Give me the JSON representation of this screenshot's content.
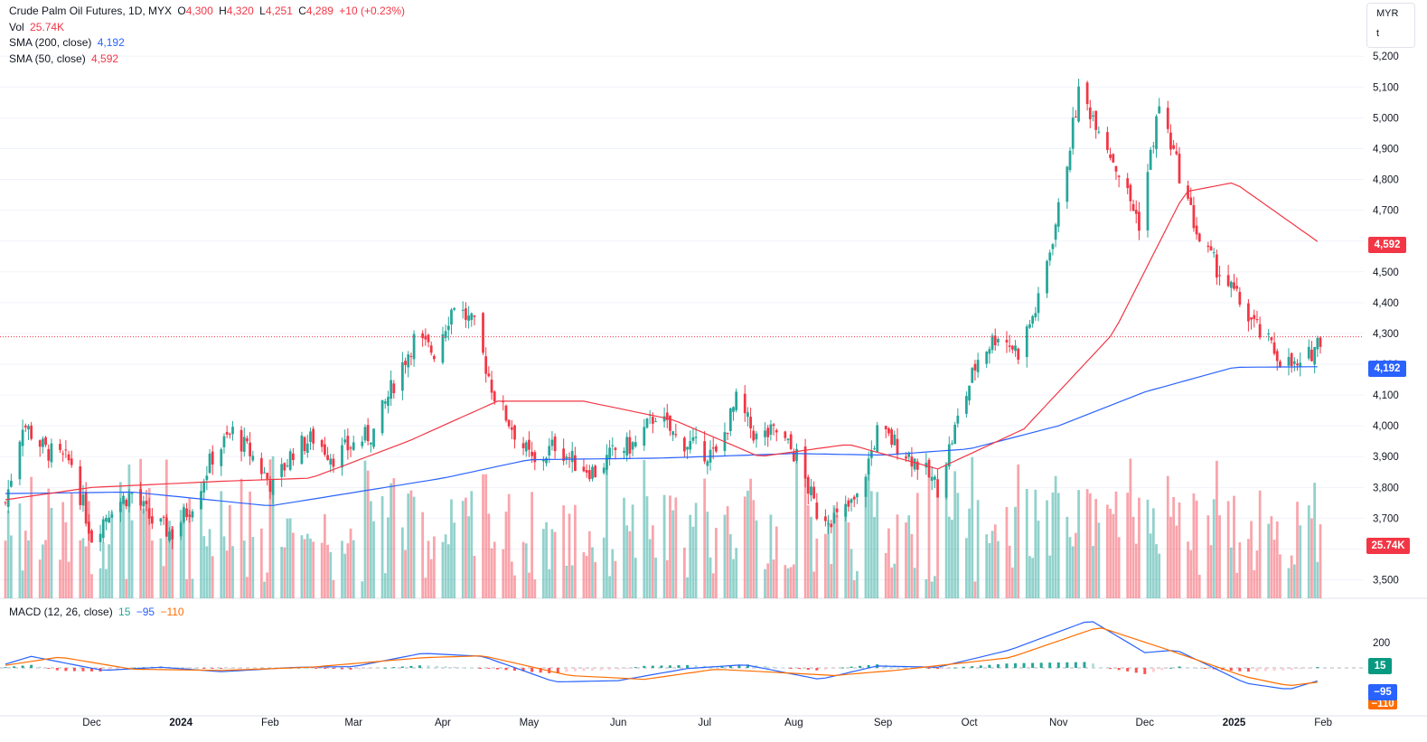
{
  "legend": {
    "symbol": "Crude Palm Oil Futures, 1D, MYX",
    "open_label": "O",
    "open": "4,300",
    "high_label": "H",
    "high": "4,320",
    "low_label": "L",
    "low": "4,251",
    "close_label": "C",
    "close": "4,289",
    "change": "+10 (+0.23%)",
    "vol_label": "Vol",
    "vol": "25.74K",
    "sma200_label": "SMA (200, close)",
    "sma200": "4,192",
    "sma50_label": "SMA (50, close)",
    "sma50": "4,592"
  },
  "macd_legend": {
    "label": "MACD (12, 26, close)",
    "hist": "15",
    "macd": "−95",
    "signal": "−110"
  },
  "unit": {
    "currency": "MYR",
    "unit": "t"
  },
  "tags": {
    "sma50": "4,592",
    "sma200": "4,192",
    "vol": "25.74K",
    "hist": "15",
    "macd": "−95",
    "signal": "−110"
  },
  "colors": {
    "up": "#26a69a",
    "down": "#f23645",
    "sma50": "#f23645",
    "sma200": "#2962ff",
    "macd": "#2962ff",
    "signal": "#ff6d00"
  },
  "chart_data": {
    "type": "candlestick",
    "title": "Crude Palm Oil Futures, 1D, MYX",
    "price_axis_ticks": [
      3500,
      3600,
      3700,
      3800,
      3900,
      4000,
      4100,
      4200,
      4300,
      4400,
      4500,
      4600,
      4700,
      4800,
      4900,
      5000,
      5100,
      5200
    ],
    "price_range": [
      3440,
      5230
    ],
    "last_price": 4289,
    "macd_axis_ticks": [
      200
    ],
    "time_axis_labels": [
      "Dec",
      "2024",
      "Feb",
      "Mar",
      "Apr",
      "May",
      "Jun",
      "Jul",
      "Aug",
      "Sep",
      "Oct",
      "Nov",
      "Dec",
      "2025",
      "Feb"
    ],
    "close_path": [
      [
        "2023-11-01",
        3750
      ],
      [
        "2023-11-07",
        4010
      ],
      [
        "2023-11-15",
        3920
      ],
      [
        "2023-11-24",
        3880
      ],
      [
        "2023-12-01",
        3640
      ],
      [
        "2023-12-08",
        3740
      ],
      [
        "2023-12-15",
        3780
      ],
      [
        "2023-12-22",
        3690
      ],
      [
        "2023-12-29",
        3650
      ],
      [
        "2024-01-05",
        3750
      ],
      [
        "2024-01-12",
        3900
      ],
      [
        "2024-01-19",
        3980
      ],
      [
        "2024-01-26",
        3900
      ],
      [
        "2024-02-02",
        3800
      ],
      [
        "2024-02-09",
        3920
      ],
      [
        "2024-02-16",
        3960
      ],
      [
        "2024-02-23",
        3900
      ],
      [
        "2024-03-01",
        3940
      ],
      [
        "2024-03-08",
        3980
      ],
      [
        "2024-03-15",
        4140
      ],
      [
        "2024-03-22",
        4280
      ],
      [
        "2024-03-29",
        4240
      ],
      [
        "2024-04-05",
        4400
      ],
      [
        "2024-04-12",
        4320
      ],
      [
        "2024-04-19",
        4100
      ],
      [
        "2024-04-26",
        3980
      ],
      [
        "2024-05-03",
        3870
      ],
      [
        "2024-05-10",
        3940
      ],
      [
        "2024-05-17",
        3880
      ],
      [
        "2024-05-24",
        3850
      ],
      [
        "2024-05-31",
        3920
      ],
      [
        "2024-06-07",
        3940
      ],
      [
        "2024-06-14",
        4040
      ],
      [
        "2024-06-21",
        3960
      ],
      [
        "2024-06-28",
        3930
      ],
      [
        "2024-07-05",
        3900
      ],
      [
        "2024-07-12",
        4080
      ],
      [
        "2024-07-19",
        3960
      ],
      [
        "2024-07-26",
        3980
      ],
      [
        "2024-08-02",
        3900
      ],
      [
        "2024-08-09",
        3720
      ],
      [
        "2024-08-16",
        3700
      ],
      [
        "2024-08-23",
        3760
      ],
      [
        "2024-08-30",
        3980
      ],
      [
        "2024-09-06",
        3940
      ],
      [
        "2024-09-13",
        3880
      ],
      [
        "2024-09-20",
        3800
      ],
      [
        "2024-09-27",
        4020
      ],
      [
        "2024-10-04",
        4220
      ],
      [
        "2024-10-11",
        4300
      ],
      [
        "2024-10-18",
        4240
      ],
      [
        "2024-10-25",
        4400
      ],
      [
        "2024-11-01",
        4700
      ],
      [
        "2024-11-08",
        5080
      ],
      [
        "2024-11-15",
        4980
      ],
      [
        "2024-11-22",
        4820
      ],
      [
        "2024-11-29",
        4660
      ],
      [
        "2024-12-06",
        5040
      ],
      [
        "2024-12-13",
        4820
      ],
      [
        "2024-12-20",
        4600
      ],
      [
        "2024-12-27",
        4500
      ],
      [
        "2025-01-03",
        4400
      ],
      [
        "2025-01-10",
        4300
      ],
      [
        "2025-01-17",
        4220
      ],
      [
        "2025-01-24",
        4180
      ],
      [
        "2025-01-31",
        4289
      ]
    ],
    "sma_200": [
      [
        "2023-11-01",
        3780
      ],
      [
        "2023-12-15",
        3785
      ],
      [
        "2024-02-01",
        3740
      ],
      [
        "2024-04-01",
        3830
      ],
      [
        "2024-05-01",
        3890
      ],
      [
        "2024-06-15",
        3895
      ],
      [
        "2024-08-01",
        3910
      ],
      [
        "2024-09-01",
        3905
      ],
      [
        "2024-10-01",
        3925
      ],
      [
        "2024-11-01",
        4000
      ],
      [
        "2024-12-01",
        4110
      ],
      [
        "2025-01-01",
        4190
      ],
      [
        "2025-01-31",
        4192
      ]
    ],
    "sma_50": [
      [
        "2023-11-01",
        3760
      ],
      [
        "2023-12-01",
        3800
      ],
      [
        "2024-01-15",
        3820
      ],
      [
        "2024-02-15",
        3830
      ],
      [
        "2024-03-20",
        3950
      ],
      [
        "2024-04-20",
        4080
      ],
      [
        "2024-05-20",
        4080
      ],
      [
        "2024-06-20",
        4020
      ],
      [
        "2024-07-20",
        3900
      ],
      [
        "2024-08-20",
        3940
      ],
      [
        "2024-09-20",
        3860
      ],
      [
        "2024-10-20",
        3990
      ],
      [
        "2024-11-20",
        4300
      ],
      [
        "2024-12-15",
        4760
      ],
      [
        "2025-01-01",
        4790
      ],
      [
        "2025-01-31",
        4592
      ]
    ],
    "macd": [
      [
        "2023-11-01",
        30
      ],
      [
        "2023-11-10",
        90
      ],
      [
        "2023-12-05",
        -20
      ],
      [
        "2023-12-25",
        5
      ],
      [
        "2024-01-15",
        -30
      ],
      [
        "2024-02-10",
        5
      ],
      [
        "2024-03-01",
        10
      ],
      [
        "2024-03-25",
        115
      ],
      [
        "2024-04-15",
        90
      ],
      [
        "2024-05-10",
        -110
      ],
      [
        "2024-06-01",
        -100
      ],
      [
        "2024-06-25",
        -5
      ],
      [
        "2024-07-15",
        25
      ],
      [
        "2024-08-10",
        -90
      ],
      [
        "2024-08-30",
        15
      ],
      [
        "2024-09-20",
        5
      ],
      [
        "2024-10-15",
        140
      ],
      [
        "2024-11-12",
        375
      ],
      [
        "2024-12-01",
        120
      ],
      [
        "2024-12-12",
        140
      ],
      [
        "2025-01-05",
        -120
      ],
      [
        "2025-01-20",
        -170
      ],
      [
        "2025-01-31",
        -95
      ]
    ],
    "signal": [
      [
        "2023-11-01",
        20
      ],
      [
        "2023-11-20",
        85
      ],
      [
        "2023-12-15",
        -10
      ],
      [
        "2024-01-15",
        -20
      ],
      [
        "2024-02-15",
        5
      ],
      [
        "2024-03-25",
        80
      ],
      [
        "2024-04-15",
        95
      ],
      [
        "2024-05-15",
        -60
      ],
      [
        "2024-06-10",
        -90
      ],
      [
        "2024-07-05",
        -10
      ],
      [
        "2024-08-15",
        -60
      ],
      [
        "2024-09-05",
        -20
      ],
      [
        "2024-10-15",
        80
      ],
      [
        "2024-11-15",
        320
      ],
      [
        "2024-12-08",
        150
      ],
      [
        "2025-01-05",
        -70
      ],
      [
        "2025-01-20",
        -140
      ],
      [
        "2025-01-31",
        -110
      ]
    ],
    "volume_range_k": [
      5,
      45
    ]
  }
}
